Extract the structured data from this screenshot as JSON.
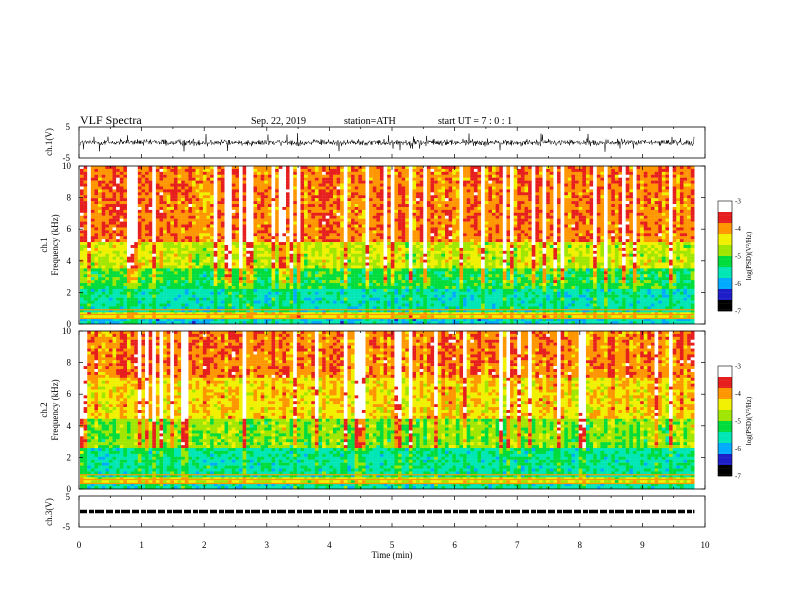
{
  "header": {
    "title": "VLF  Spectra",
    "date": "Sep. 22, 2019",
    "station": "station=ATH",
    "start": "start  UT  =   7  : 0  : 1"
  },
  "chart_data": [
    {
      "type": "line",
      "panel": "ch1-waveform",
      "ylabel": "ch.1(V)",
      "ylim": [
        -5,
        5
      ],
      "yticks": [
        "5",
        "-5"
      ],
      "xlim": [
        0,
        10
      ],
      "trace_end_min": 9.83,
      "description_values": {
        "baseline_V": 0.0,
        "noise_amplitude_V": 1.5,
        "max_excursion_V": 3.0
      }
    },
    {
      "type": "heatmap",
      "panel": "ch1-spectrogram",
      "ylabel": "ch.1\nFrequency  (kHz)",
      "ylabel_line1": "ch.1",
      "ylabel_line2": "Frequency  (kHz)",
      "xlim": [
        0,
        10
      ],
      "ylim": [
        0,
        10
      ],
      "yticks": [
        "0",
        "2",
        "4",
        "6",
        "8",
        "10"
      ],
      "data_end_min": 9.83,
      "colorbar": {
        "label": "log(PSD)(V²/Hz)",
        "ticks": [
          "-3",
          "-4",
          "-5",
          "-6",
          "-7"
        ],
        "range": [
          -7,
          -3
        ]
      },
      "bands": [
        {
          "f_from": 0.0,
          "f_to": 0.3,
          "log_psd": -5.8
        },
        {
          "f_from": 0.3,
          "f_to": 0.8,
          "log_psd": -4.5
        },
        {
          "f_from": 0.8,
          "f_to": 2.2,
          "log_psd": -5.6
        },
        {
          "f_from": 2.2,
          "f_to": 3.6,
          "log_psd": -5.2
        },
        {
          "f_from": 3.6,
          "f_to": 5.2,
          "log_psd": -4.6
        },
        {
          "f_from": 5.2,
          "f_to": 10.0,
          "log_psd": -3.9
        }
      ]
    },
    {
      "type": "heatmap",
      "panel": "ch2-spectrogram",
      "ylabel_line1": "ch.2",
      "ylabel_line2": "Frequency  (kHz)",
      "xlim": [
        0,
        10
      ],
      "ylim": [
        0,
        10
      ],
      "yticks": [
        "0",
        "2",
        "4",
        "6",
        "8",
        "10"
      ],
      "data_end_min": 9.83,
      "colorbar": {
        "label": "log(PSD)(V²/Hz)",
        "ticks": [
          "-3",
          "-4",
          "-5",
          "-6",
          "-7"
        ],
        "range": [
          -7,
          -3
        ]
      },
      "bands": [
        {
          "f_from": 0.0,
          "f_to": 0.3,
          "log_psd": -5.6
        },
        {
          "f_from": 0.3,
          "f_to": 0.8,
          "log_psd": -4.6
        },
        {
          "f_from": 0.8,
          "f_to": 2.6,
          "log_psd": -5.5
        },
        {
          "f_from": 2.6,
          "f_to": 4.5,
          "log_psd": -4.9
        },
        {
          "f_from": 4.5,
          "f_to": 7.0,
          "log_psd": -4.3
        },
        {
          "f_from": 7.0,
          "f_to": 10.0,
          "log_psd": -3.9
        }
      ]
    },
    {
      "type": "line",
      "panel": "ch3-waveform",
      "ylabel": "ch.3(V)",
      "ylim": [
        -5,
        5
      ],
      "yticks": [
        "5",
        "-5"
      ],
      "xlim": [
        0,
        10
      ],
      "xlabel": "Time  (min)",
      "xticks": [
        "0",
        "1",
        "2",
        "3",
        "4",
        "5",
        "6",
        "7",
        "8",
        "9",
        "10"
      ],
      "trace_end_min": 9.83,
      "description_values": {
        "level_V": 0.0,
        "pulse_high_V": 0.3,
        "pulse_low_V": -0.3
      }
    }
  ],
  "colors": {
    "colormap": [
      "#000000",
      "#1e1ec8",
      "#00aaff",
      "#00e6b4",
      "#00dc3c",
      "#a0e600",
      "#f0f000",
      "#ff9600",
      "#e61e1e",
      "#ffffff"
    ]
  }
}
